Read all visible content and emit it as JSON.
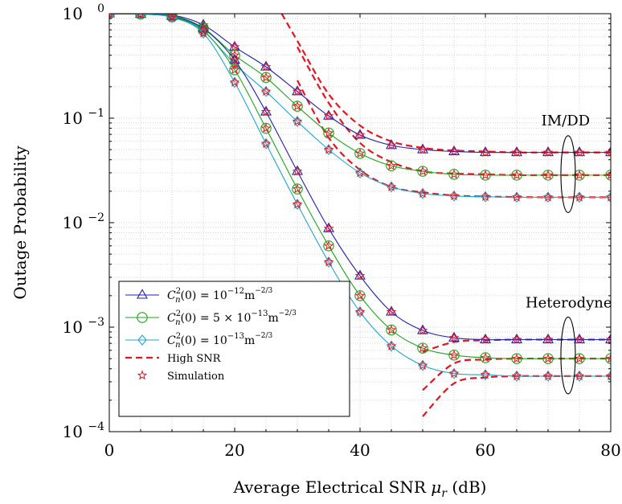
{
  "chart_data": {
    "type": "line",
    "xlabel_main": "Average Electrical SNR ",
    "xlabel_symbol": "μ",
    "xlabel_sub": "r",
    "xlabel_unit": " (dB)",
    "ylabel": "Outage Probability",
    "x_scale": "linear",
    "y_scale": "log",
    "xlim": [
      0,
      80
    ],
    "ylim": [
      0.0001,
      1
    ],
    "x_ticks": [
      0,
      20,
      40,
      60,
      80
    ],
    "x_tick_labels": [
      "0",
      "20",
      "40",
      "60",
      "80"
    ],
    "y_ticks": [
      1,
      0.1,
      0.01,
      0.001,
      0.0001
    ],
    "y_tick_base": "10",
    "y_tick_exponents": [
      "0",
      "−1",
      "−2",
      "−3",
      "−4"
    ],
    "grid": true,
    "legend_placement": "bottom-left",
    "colors": {
      "blue": "#1f1fb4",
      "green": "#1aa61a",
      "cyan": "#1fa7d7",
      "red": "#e6141e"
    },
    "annotations": [
      {
        "text": "IM/DD",
        "x": 72.8,
        "y": 0.085,
        "ellipse": {
          "cx": 73.2,
          "cy_low": 0.0125,
          "cy_high": 0.068
        }
      },
      {
        "text": "Heterodyne",
        "x": 73.3,
        "y": 0.00155,
        "ellipse": {
          "cx": 73.2,
          "cy_low": 0.00023,
          "cy_high": 0.00125
        }
      }
    ],
    "legend": [
      {
        "label_lhs": "C",
        "label_sup": "2",
        "label_sub": "n",
        "label_mid": "(0) = 10",
        "label_exp": "−12",
        "label_unit": "m",
        "label_unit_exp": "−2/3",
        "color": "#1f1fb4",
        "marker": "triangle",
        "line": "solid"
      },
      {
        "label_lhs": "C",
        "label_sup": "2",
        "label_sub": "n",
        "label_mid": "(0) = 5 × 10",
        "label_exp": "−13",
        "label_unit": "m",
        "label_unit_exp": "−2/3",
        "color": "#1aa61a",
        "marker": "circle",
        "line": "solid"
      },
      {
        "label_lhs": "C",
        "label_sup": "2",
        "label_sub": "n",
        "label_mid": "(0) = 10",
        "label_exp": "−13",
        "label_unit": "m",
        "label_unit_exp": "−2/3",
        "color": "#1fa7d7",
        "marker": "diamond",
        "line": "solid"
      },
      {
        "label_text": "High SNR",
        "color": "#e6141e",
        "marker": "none",
        "line": "dashed"
      },
      {
        "label_text": "Simulation",
        "color": "#e6141e",
        "marker": "star",
        "line": "none"
      }
    ],
    "series": [
      {
        "group": "IM/DD",
        "color": "#1f1fb4",
        "marker": "triangle",
        "x": [
          0,
          5,
          10,
          15,
          20,
          25,
          30,
          35,
          40,
          45,
          50,
          55,
          60,
          65,
          70,
          75,
          80
        ],
        "values": [
          1.0,
          0.995,
          0.97,
          0.78,
          0.48,
          0.31,
          0.18,
          0.105,
          0.069,
          0.055,
          0.05,
          0.048,
          0.047,
          0.047,
          0.047,
          0.047,
          0.047
        ]
      },
      {
        "group": "IM/DD",
        "color": "#1aa61a",
        "marker": "circle",
        "x": [
          0,
          5,
          10,
          15,
          20,
          25,
          30,
          35,
          40,
          45,
          50,
          55,
          60,
          65,
          70,
          75,
          80
        ],
        "values": [
          1.0,
          0.995,
          0.96,
          0.73,
          0.4,
          0.245,
          0.13,
          0.072,
          0.046,
          0.035,
          0.031,
          0.029,
          0.0285,
          0.0285,
          0.0285,
          0.0285,
          0.0285
        ]
      },
      {
        "group": "IM/DD",
        "color": "#1fa7d7",
        "marker": "diamond",
        "x": [
          0,
          5,
          10,
          15,
          20,
          25,
          30,
          35,
          40,
          45,
          50,
          55,
          60,
          65,
          70,
          75,
          80
        ],
        "values": [
          1.0,
          0.99,
          0.95,
          0.68,
          0.33,
          0.18,
          0.093,
          0.05,
          0.03,
          0.022,
          0.019,
          0.018,
          0.0177,
          0.0175,
          0.0175,
          0.0175,
          0.0175
        ]
      },
      {
        "group": "Heterodyne",
        "color": "#1f1fb4",
        "marker": "triangle",
        "x": [
          0,
          5,
          10,
          15,
          20,
          25,
          30,
          35,
          40,
          45,
          50,
          55,
          60,
          65,
          70,
          75,
          80
        ],
        "values": [
          1.0,
          0.99,
          0.94,
          0.72,
          0.36,
          0.115,
          0.031,
          0.0088,
          0.0031,
          0.0014,
          0.00093,
          0.00079,
          0.00076,
          0.00076,
          0.00076,
          0.00076,
          0.00076
        ]
      },
      {
        "group": "Heterodyne",
        "color": "#1aa61a",
        "marker": "circle",
        "x": [
          0,
          5,
          10,
          15,
          20,
          25,
          30,
          35,
          40,
          45,
          50,
          55,
          60,
          65,
          70,
          75,
          80
        ],
        "values": [
          1.0,
          0.99,
          0.93,
          0.69,
          0.29,
          0.08,
          0.021,
          0.006,
          0.002,
          0.00094,
          0.00063,
          0.00054,
          0.00051,
          0.0005,
          0.0005,
          0.0005,
          0.0005
        ]
      },
      {
        "group": "Heterodyne",
        "color": "#1fa7d7",
        "marker": "diamond",
        "x": [
          0,
          5,
          10,
          15,
          20,
          25,
          30,
          35,
          40,
          45,
          50,
          55,
          60,
          65,
          70,
          75,
          80
        ],
        "values": [
          1.0,
          0.99,
          0.92,
          0.65,
          0.22,
          0.057,
          0.015,
          0.0042,
          0.0014,
          0.00066,
          0.00043,
          0.00036,
          0.00035,
          0.00034,
          0.00034,
          0.00034,
          0.00034
        ]
      }
    ],
    "high_snr_series": [
      {
        "x": [
          27.5,
          30,
          35,
          40,
          45,
          50,
          55,
          60,
          65,
          70,
          75,
          80
        ],
        "values": [
          1.0,
          0.55,
          0.17,
          0.085,
          0.06,
          0.052,
          0.049,
          0.048,
          0.047,
          0.047,
          0.047,
          0.047
        ]
      },
      {
        "x": [
          30,
          35,
          40,
          45,
          50,
          55,
          60,
          65,
          70,
          75,
          80
        ],
        "values": [
          0.48,
          0.14,
          0.058,
          0.038,
          0.031,
          0.0295,
          0.029,
          0.0285,
          0.0285,
          0.0285,
          0.0285
        ]
      },
      {
        "x": [
          30,
          35,
          40,
          45,
          50,
          55,
          60,
          65,
          70,
          75,
          80
        ],
        "values": [
          0.23,
          0.065,
          0.032,
          0.022,
          0.0195,
          0.0182,
          0.0178,
          0.0176,
          0.0175,
          0.0175,
          0.0175
        ]
      },
      {
        "x": [
          50,
          55,
          60,
          65,
          70,
          75,
          80
        ],
        "values": [
          0.00058,
          0.00072,
          0.00075,
          0.00076,
          0.00076,
          0.00076,
          0.00076
        ]
      },
      {
        "x": [
          50,
          55,
          60,
          65,
          70,
          75,
          80
        ],
        "values": [
          0.00025,
          0.00045,
          0.00049,
          0.0005,
          0.0005,
          0.0005,
          0.0005
        ]
      },
      {
        "x": [
          50,
          55,
          60,
          65,
          70,
          75,
          80
        ],
        "values": [
          0.00014,
          0.00029,
          0.00033,
          0.00034,
          0.00034,
          0.00034,
          0.00034
        ]
      }
    ]
  }
}
